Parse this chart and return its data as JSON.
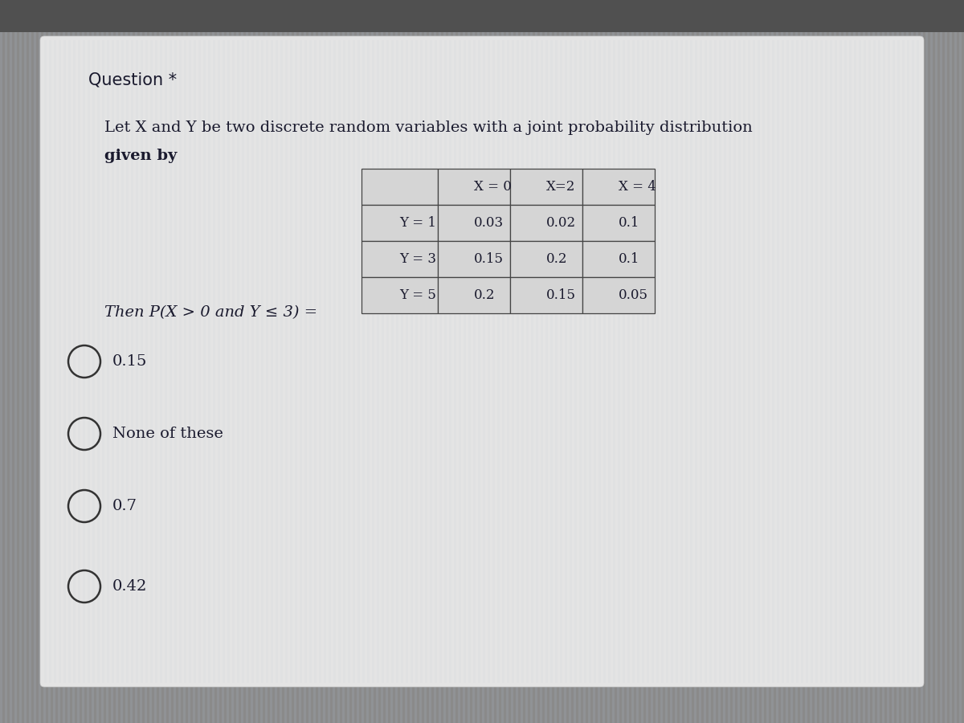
{
  "background_color": "#8a8a8a",
  "card_color": "#dcdcdc",
  "question_label": "Question *",
  "question_label_fontsize": 15,
  "description_line1": "Let X and Y be two discrete random variables with a joint probability distribution",
  "description_line2": "given by",
  "description_fontsize": 14,
  "table_headers": [
    "",
    "X = 0",
    "X=2",
    "X = 4"
  ],
  "table_rows": [
    [
      "Y = 1",
      "0.03",
      "0.02",
      "0.1"
    ],
    [
      "Y = 3",
      "0.15",
      "0.2",
      "0.1"
    ],
    [
      "Y = 5",
      "0.2",
      "0.15",
      "0.05"
    ]
  ],
  "then_text": "Then P(X > 0 and Y ≤ 3) =",
  "then_fontsize": 14,
  "options": [
    "0.15",
    "None of these",
    "0.7",
    "0.42"
  ],
  "option_fontsize": 14,
  "table_fontsize": 12,
  "text_color": "#1a1a2e",
  "table_cell_color": "#d8d8d8",
  "table_border_color": "#555555",
  "stripe_color": "#b0b8c8",
  "stripe_alpha": 0.18
}
